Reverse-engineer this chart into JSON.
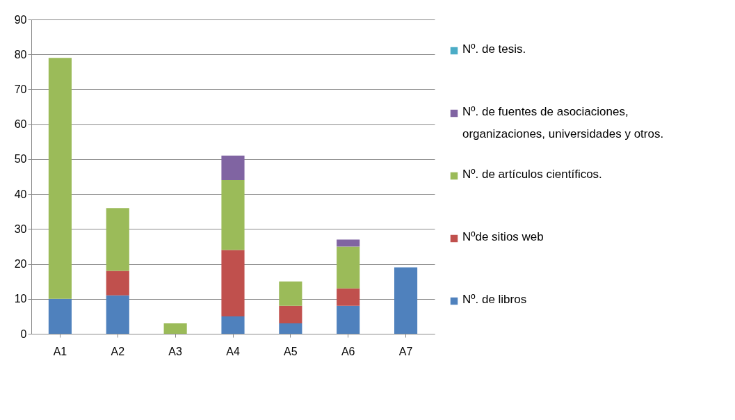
{
  "chart_data": {
    "type": "bar",
    "stacked": true,
    "categories": [
      "A1",
      "A2",
      "A3",
      "A4",
      "A5",
      "A6",
      "A7"
    ],
    "series": [
      {
        "name": "Nº. de libros",
        "color": "#4f81bd",
        "values": [
          10,
          11,
          0,
          5,
          3,
          8,
          19
        ]
      },
      {
        "name": "Nºde sitios web",
        "color": "#c0504d",
        "values": [
          0,
          7,
          0,
          19,
          5,
          5,
          0
        ]
      },
      {
        "name": "Nº. de artículos científicos.",
        "color": "#9bbb59",
        "values": [
          69,
          18,
          3,
          20,
          7,
          12,
          0
        ]
      },
      {
        "name": "Nº. de fuentes de asociaciones, organizaciones, universidades y otros.",
        "color": "#8064a2",
        "values": [
          0,
          0,
          0,
          7,
          0,
          2,
          0
        ]
      },
      {
        "name": "Nº. de tesis.",
        "color": "#4bacc6",
        "values": [
          0,
          0,
          0,
          0,
          0,
          0,
          0
        ]
      }
    ],
    "ylim": [
      0,
      90
    ],
    "yticks": [
      0,
      10,
      20,
      30,
      40,
      50,
      60,
      70,
      80,
      90
    ],
    "grid": "y",
    "legend": "right"
  }
}
